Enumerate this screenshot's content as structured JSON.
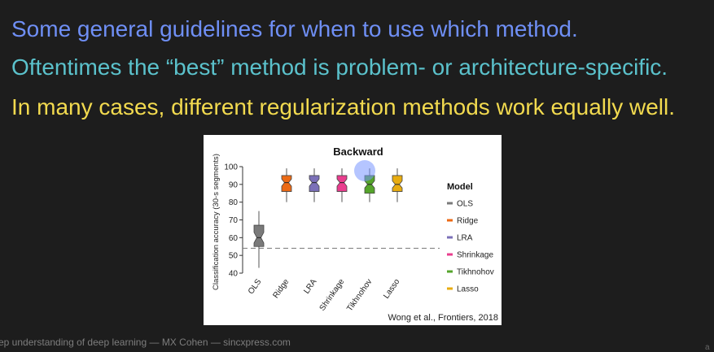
{
  "slide": {
    "line1": "Some general guidelines for when to use which method.",
    "line2": "Oftentimes the “best” method is problem- or architecture-specific.",
    "line3": "In many cases, different regularization methods work equally well.",
    "footer": "ep understanding of deep learning — MX Cohen — sincxpress.com",
    "colors": {
      "background": "#1d1d1d",
      "line1": "#6f8ff5",
      "line2": "#5bc2cc",
      "line3": "#f2da4f"
    }
  },
  "chart_data": {
    "type": "boxplot",
    "title": "Backward",
    "xlabel": "",
    "ylabel": "Classification accuracy (30-s segments)",
    "ylim": [
      40,
      100
    ],
    "yticks": [
      40,
      50,
      60,
      70,
      80,
      90,
      100
    ],
    "categories": [
      "OLS",
      "Ridge",
      "LRA",
      "Shrinkage",
      "Tikhnohov",
      "Lasso"
    ],
    "colors": [
      "#7a7a7a",
      "#ec6a15",
      "#7b70b8",
      "#e93d8e",
      "#55a42b",
      "#e8ac10"
    ],
    "series": [
      {
        "name": "OLS",
        "whisker_low": 43,
        "q1": 55,
        "median": 60,
        "q3": 67,
        "whisker_high": 75,
        "notch": [
          57,
          63
        ]
      },
      {
        "name": "Ridge",
        "whisker_low": 80,
        "q1": 86,
        "median": 91,
        "q3": 95,
        "whisker_high": 99,
        "notch": [
          89,
          93
        ]
      },
      {
        "name": "LRA",
        "whisker_low": 80,
        "q1": 86,
        "median": 91,
        "q3": 95,
        "whisker_high": 99,
        "notch": [
          89,
          93
        ]
      },
      {
        "name": "Shrinkage",
        "whisker_low": 80,
        "q1": 86,
        "median": 91,
        "q3": 95,
        "whisker_high": 99,
        "notch": [
          89,
          93
        ]
      },
      {
        "name": "Tikhnohov",
        "whisker_low": 80,
        "q1": 85,
        "median": 90,
        "q3": 95,
        "whisker_high": 99,
        "notch": [
          88,
          92
        ]
      },
      {
        "name": "Lasso",
        "whisker_low": 80,
        "q1": 86,
        "median": 90,
        "q3": 95,
        "whisker_high": 99,
        "notch": [
          88,
          92
        ]
      }
    ],
    "reference_line": {
      "y": 54,
      "style": "dashed"
    },
    "legend": {
      "title": "Model",
      "position": "right",
      "entries": [
        "OLS",
        "Ridge",
        "LRA",
        "Shrinkage",
        "Tikhnohov",
        "Lasso"
      ]
    },
    "citation": "Wong et al., Frontiers, 2018"
  }
}
